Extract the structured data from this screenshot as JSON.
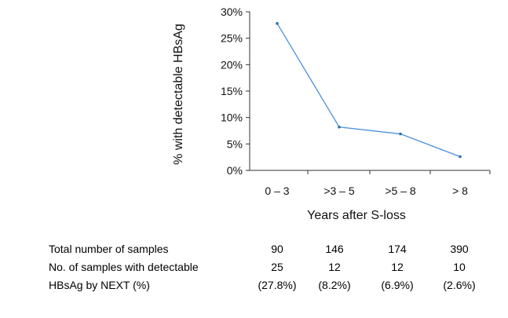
{
  "chart_data": {
    "type": "line",
    "categories": [
      "0 – 3",
      ">3 – 5",
      ">5 – 8",
      "> 8"
    ],
    "series": [
      {
        "values": [
          27.8,
          8.2,
          6.9,
          2.6
        ],
        "color": "#4a90d9"
      }
    ],
    "ylim": [
      0,
      30
    ],
    "yticks": [
      "0%",
      "5%",
      "10%",
      "15%",
      "20%",
      "25%",
      "30%"
    ],
    "xlabel": "Years after S-loss",
    "ylabel": "% with detectable HBsAg",
    "grid": false,
    "legend": "none"
  },
  "table": {
    "rows": [
      {
        "label": "Total number of samples",
        "values": [
          "90",
          "146",
          "174",
          "390"
        ]
      },
      {
        "label": "No. of samples with detectable",
        "values": [
          "25",
          "12",
          "12",
          "10"
        ]
      },
      {
        "label": "HBsAg by NEXT (%)",
        "values": [
          "(27.8%)",
          "(8.2%)",
          "(6.9%)",
          "(2.6%)"
        ]
      }
    ]
  }
}
